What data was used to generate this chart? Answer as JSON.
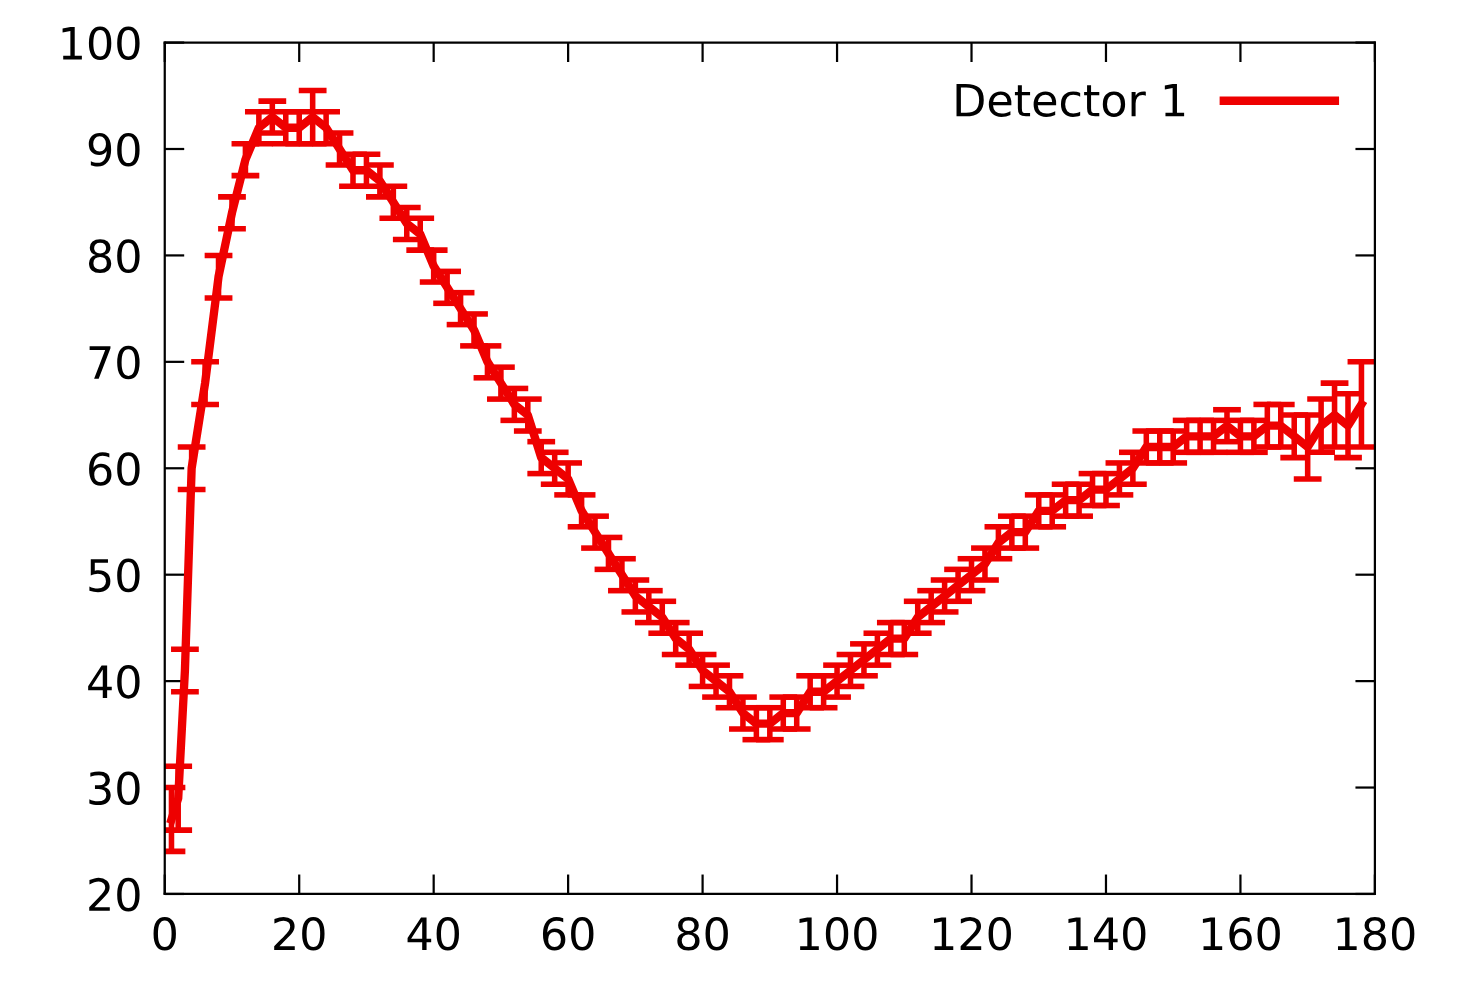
{
  "chart_data": {
    "type": "line",
    "xlim": [
      0,
      180
    ],
    "ylim": [
      20,
      100
    ],
    "xticks": [
      0,
      20,
      40,
      60,
      80,
      100,
      120,
      140,
      160,
      180
    ],
    "yticks": [
      20,
      30,
      40,
      50,
      60,
      70,
      80,
      90,
      100
    ],
    "grid": false,
    "legend": "top right",
    "marker": "none",
    "line_style": "solid",
    "x": [
      1,
      2,
      3,
      4,
      6,
      8,
      10,
      12,
      14,
      16,
      18,
      20,
      22,
      24,
      26,
      28,
      30,
      32,
      34,
      36,
      38,
      40,
      42,
      44,
      46,
      48,
      50,
      52,
      54,
      56,
      58,
      60,
      62,
      64,
      66,
      68,
      70,
      72,
      74,
      76,
      78,
      80,
      82,
      84,
      86,
      88,
      90,
      92,
      94,
      96,
      98,
      100,
      102,
      104,
      106,
      108,
      110,
      112,
      114,
      116,
      118,
      120,
      122,
      124,
      126,
      128,
      130,
      132,
      134,
      136,
      138,
      140,
      142,
      144,
      146,
      148,
      150,
      152,
      154,
      156,
      158,
      160,
      162,
      164,
      166,
      168,
      170,
      172,
      174,
      176,
      178
    ],
    "series": [
      {
        "name": "Detector 1",
        "color": "#ee0000",
        "values": [
          27,
          29,
          41,
          60,
          68,
          78,
          84,
          89,
          92,
          93,
          92,
          92,
          93,
          92,
          90,
          88,
          88,
          87,
          85,
          83,
          82,
          79,
          77,
          75,
          73,
          70,
          68,
          66,
          65,
          61,
          60,
          59,
          56,
          54,
          52,
          50,
          48,
          47,
          46,
          44,
          43,
          41,
          40,
          39,
          37,
          36,
          36,
          37,
          37,
          39,
          39,
          40,
          41,
          42,
          43,
          44,
          44,
          46,
          47,
          48,
          49,
          50,
          51,
          53,
          54,
          54,
          56,
          56,
          57,
          57,
          58,
          58,
          59,
          60,
          62,
          62,
          62,
          63,
          63,
          63,
          64,
          63,
          63,
          64,
          64,
          63,
          62,
          64,
          65,
          64,
          66
        ],
        "errors": [
          3,
          3,
          2,
          2,
          2,
          2,
          1.5,
          1.5,
          1.5,
          1.5,
          1.5,
          1.5,
          2.5,
          1.5,
          1.5,
          1.5,
          1.5,
          1.5,
          1.5,
          1.5,
          1.5,
          1.5,
          1.5,
          1.5,
          1.5,
          1.5,
          1.5,
          1.5,
          1.5,
          1.5,
          1.5,
          1.5,
          1.5,
          1.5,
          1.5,
          1.5,
          1.5,
          1.5,
          1.5,
          1.5,
          1.5,
          1.5,
          1.5,
          1.5,
          1.5,
          1.5,
          1.5,
          1.5,
          1.5,
          1.5,
          1.5,
          1.5,
          1.5,
          1.5,
          1.5,
          1.5,
          1.5,
          1.5,
          1.5,
          1.5,
          1.5,
          1.5,
          1.5,
          1.5,
          1.5,
          1.5,
          1.5,
          1.5,
          1.5,
          1.5,
          1.5,
          1.5,
          1.5,
          1.5,
          1.5,
          1.5,
          1.5,
          1.5,
          1.5,
          1.5,
          1.5,
          1.5,
          1.5,
          2,
          2,
          2,
          3,
          2.5,
          3,
          3,
          4
        ]
      }
    ]
  }
}
